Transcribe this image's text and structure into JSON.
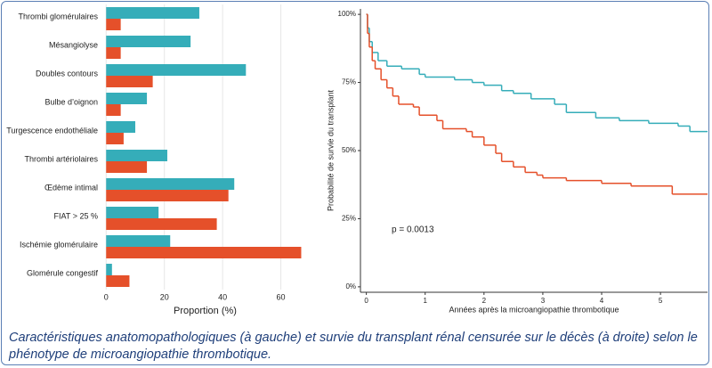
{
  "chart_data": [
    {
      "type": "bar",
      "orientation": "horizontal",
      "x_label": "Proportion (%)",
      "categories": [
        "Thrombi glomérulaires",
        "Mésangiolyse",
        "Doubles contours",
        "Bulbe d’oignon",
        "Turgescence endothéliale",
        "Thrombi artériolaires",
        "Œdème  intimal",
        "FIAT > 25 %",
        "Ischémie glomérulaire",
        "Glomérule congestif"
      ],
      "series": [
        {
          "color": "#35adb9",
          "values": [
            32,
            29,
            48,
            14,
            10,
            21,
            44,
            18,
            22,
            2
          ]
        },
        {
          "color": "#e5502a",
          "values": [
            5,
            5,
            16,
            5,
            6,
            14,
            42,
            38,
            67,
            8
          ]
        }
      ],
      "xlim": [
        -1,
        69
      ],
      "xticks": [
        0,
        20,
        40,
        60
      ],
      "grid": true
    },
    {
      "type": "line",
      "step": true,
      "y_label": "Probabilité de survie du transplant",
      "x_label": "Années après la microangiopathie thrombotique",
      "annotation": "p = 0.0013",
      "series": [
        {
          "color": "#35adb9",
          "x": [
            0,
            0.02,
            0.05,
            0.1,
            0.2,
            0.35,
            0.6,
            0.9,
            1.0,
            1.5,
            1.8,
            2.0,
            2.3,
            2.5,
            2.8,
            3.2,
            3.4,
            3.9,
            4.3,
            4.8,
            5.3,
            5.5,
            5.8
          ],
          "values": [
            100,
            95,
            90,
            86,
            83,
            81,
            80,
            78,
            77,
            76,
            75,
            74,
            72,
            71,
            69,
            67,
            64,
            62,
            61,
            60,
            59,
            57,
            57
          ]
        },
        {
          "color": "#e5502a",
          "x": [
            0,
            0.02,
            0.05,
            0.1,
            0.15,
            0.25,
            0.35,
            0.45,
            0.55,
            0.8,
            0.9,
            1.2,
            1.3,
            1.7,
            1.8,
            2.0,
            2.2,
            2.3,
            2.5,
            2.7,
            2.9,
            3.0,
            3.4,
            4.0,
            4.5,
            5.2,
            5.8
          ],
          "values": [
            100,
            93,
            88,
            83,
            80,
            76,
            73,
            70,
            67,
            66,
            63,
            61,
            58,
            57,
            55,
            52,
            49,
            46,
            44,
            42,
            41,
            40,
            39,
            38,
            37,
            34,
            34
          ]
        }
      ],
      "xlim": [
        -0.1,
        5.8
      ],
      "xticks": [
        0,
        1,
        2,
        3,
        4,
        5
      ],
      "ylim": [
        -2,
        102
      ],
      "yticks": [
        {
          "value": 0,
          "label": "0%"
        },
        {
          "value": 25,
          "label": "25%"
        },
        {
          "value": 50,
          "label": "50%"
        },
        {
          "value": 75,
          "label": "75%"
        },
        {
          "value": 100,
          "label": "100%"
        }
      ]
    }
  ],
  "caption": "Caractéristiques anatomopathologiques (à gauche) et survie du transplant rénal censurée sur le décès (à droite) selon le phénotype de microangiopathie thrombotique."
}
